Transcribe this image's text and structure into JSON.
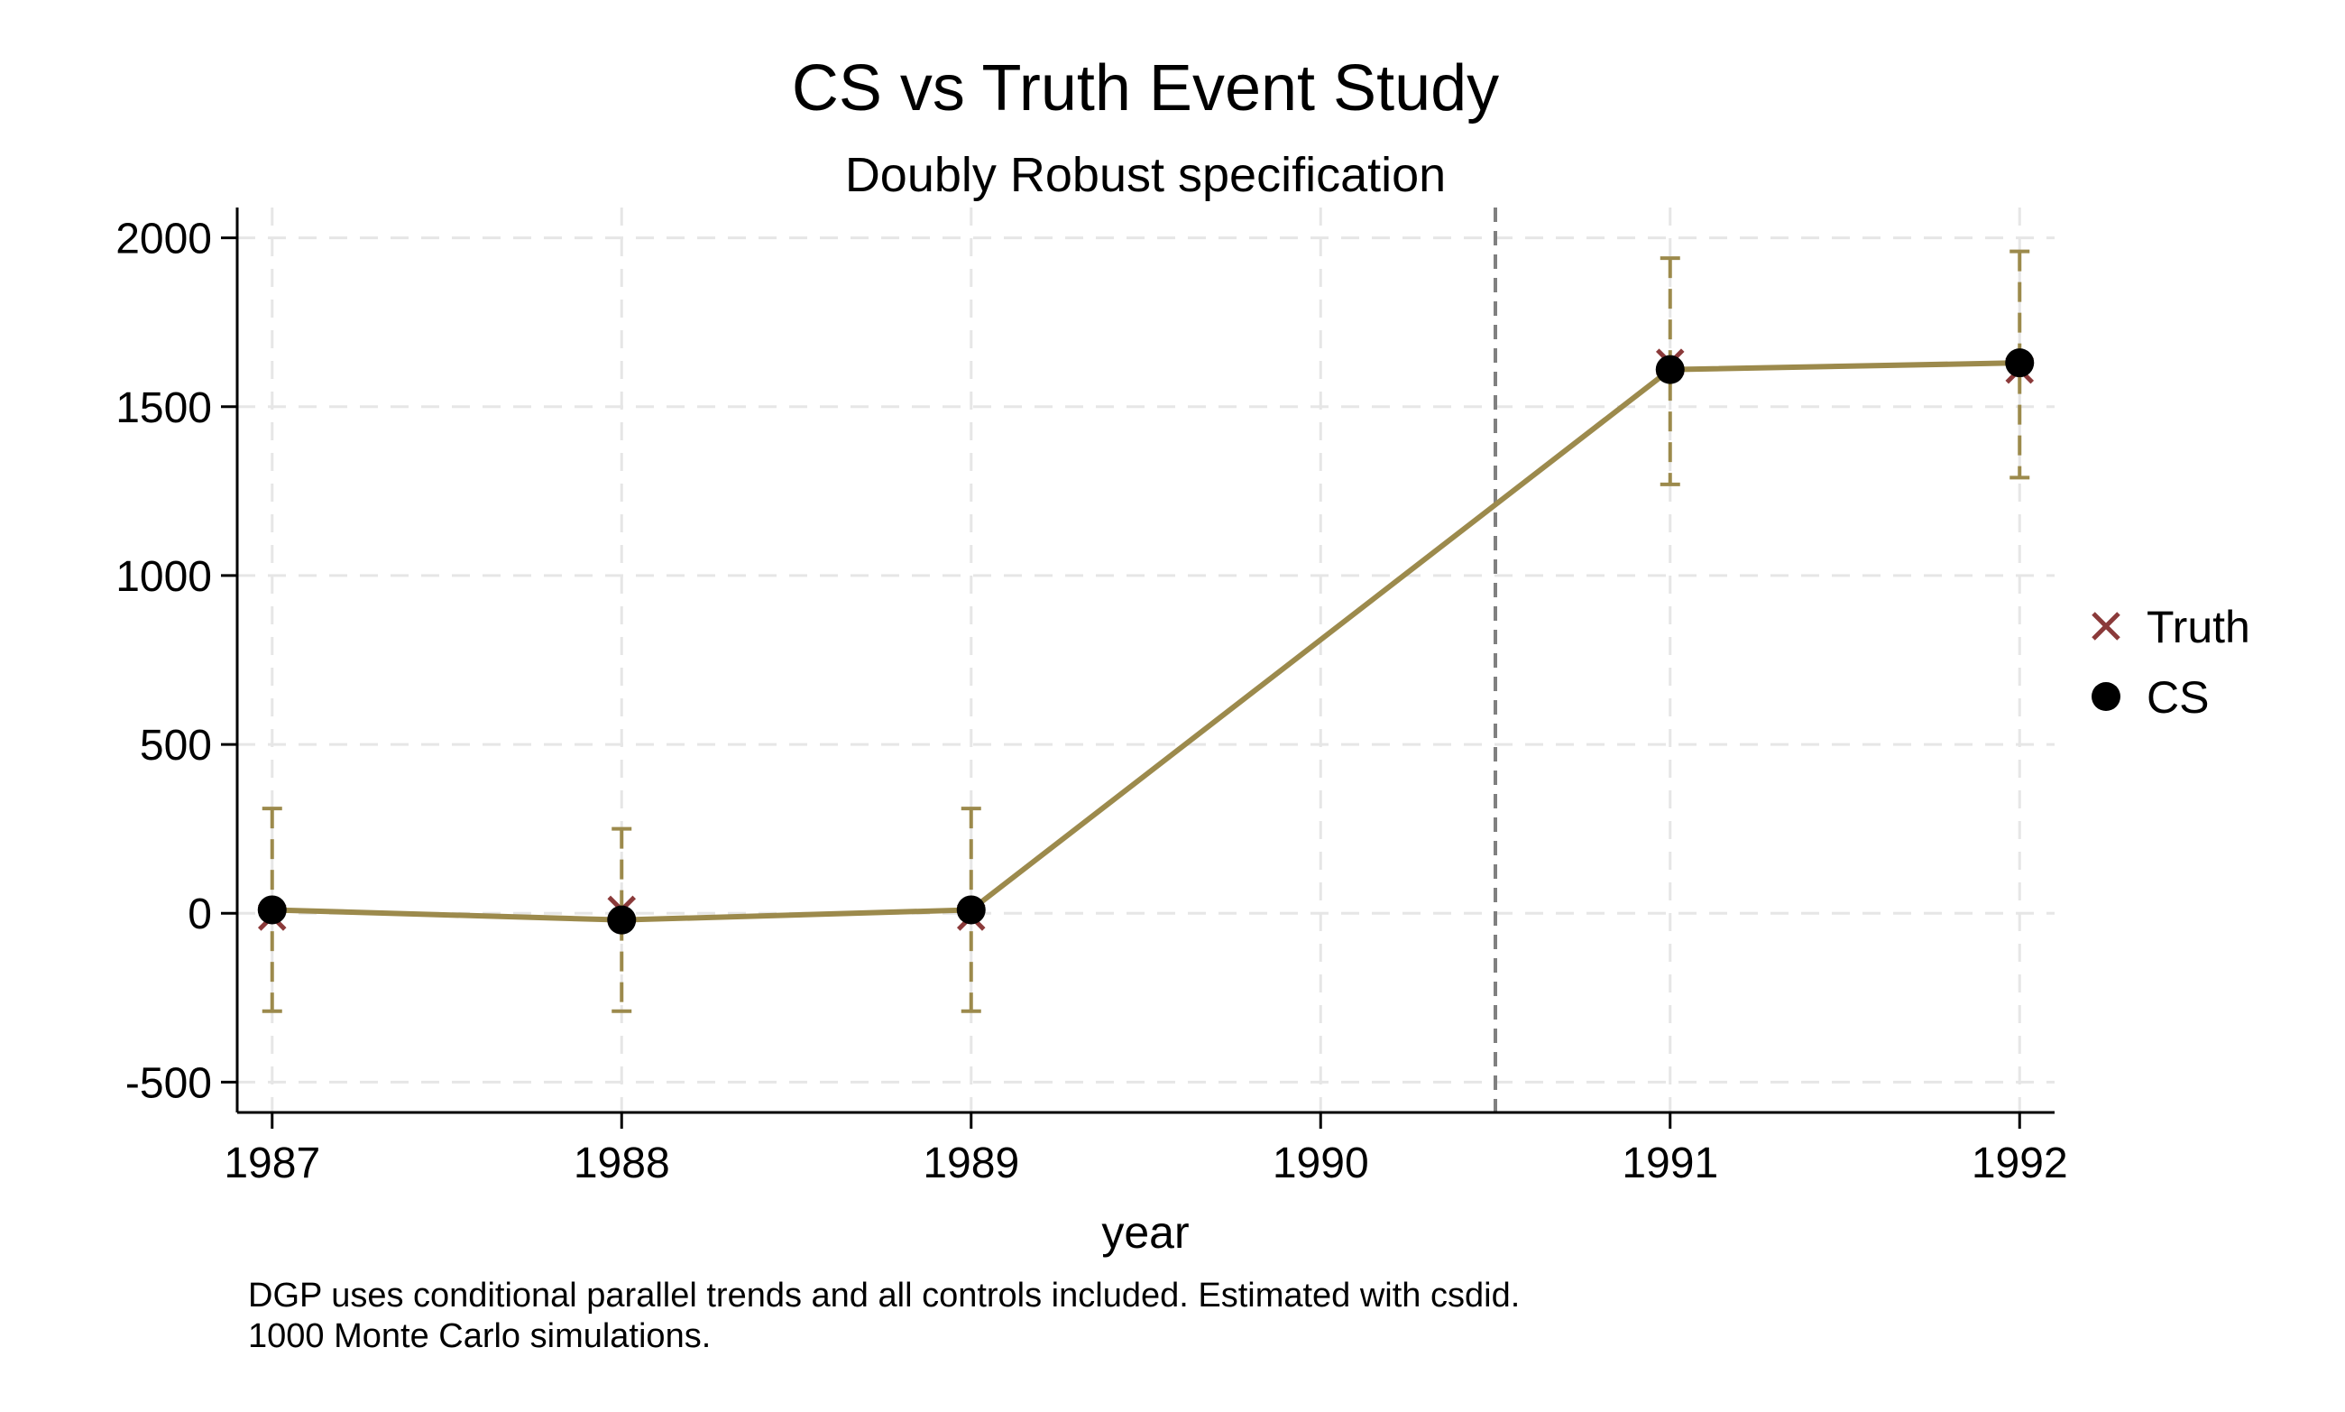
{
  "chart_data": {
    "type": "line",
    "title": "CS vs Truth Event Study",
    "subtitle": "Doubly Robust specification",
    "xlabel": "year",
    "ylabel": "",
    "x": [
      1987,
      1988,
      1989,
      1990,
      1991,
      1992
    ],
    "xticks": [
      "1987",
      "1988",
      "1989",
      "1990",
      "1991",
      "1992"
    ],
    "yticks": [
      "-500",
      "0",
      "500",
      "1000",
      "1500",
      "2000"
    ],
    "ytick_values": [
      -500,
      0,
      500,
      1000,
      1500,
      2000
    ],
    "xlim": [
      1986.9,
      1992.1
    ],
    "ylim": [
      -590,
      2090
    ],
    "treatment_line_x": 1990.5,
    "grid": true,
    "legend_position": "right",
    "series": [
      {
        "name": "Truth",
        "marker": "x",
        "color": "#8b3a3a",
        "x": [
          1987,
          1988,
          1989,
          1991,
          1992
        ],
        "values": [
          -10,
          10,
          -10,
          1630,
          1610
        ]
      },
      {
        "name": "CS",
        "marker": "circle",
        "color": "#000000",
        "line_color": "#9c8a4c",
        "x": [
          1987,
          1988,
          1989,
          1991,
          1992
        ],
        "values": [
          10,
          -20,
          10,
          1610,
          1630
        ],
        "ci_lower": [
          -290,
          -290,
          -290,
          1270,
          1290
        ],
        "ci_upper": [
          310,
          250,
          310,
          1940,
          1960
        ]
      }
    ],
    "note": [
      "DGP uses conditional parallel trends and all controls included. Estimated with csdid.",
      "1000 Monte Carlo simulations."
    ]
  },
  "colors": {
    "line": "#9c8a4c",
    "ci": "#9c8a4c",
    "truth_marker": "#8b3a3a",
    "cs_marker": "#000000",
    "grid": "#e6e6e6",
    "event_line": "#808080"
  }
}
